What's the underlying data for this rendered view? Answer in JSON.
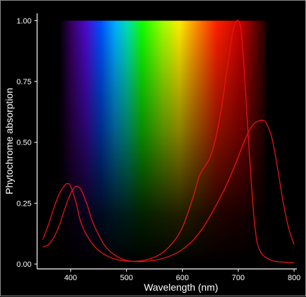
{
  "chart_data": {
    "type": "line",
    "xlabel": "Wavelength (nm)",
    "ylabel": "Phytochrome absorption",
    "xlim": [
      340,
      805
    ],
    "ylim": [
      -0.02,
      1.03
    ],
    "x_ticks": [
      400,
      500,
      600,
      700,
      800
    ],
    "y_ticks": [
      "0.00",
      "0.25",
      "0.50",
      "0.75",
      "1.00"
    ],
    "grid": false,
    "legend": "none",
    "colors": {
      "background": "#000000",
      "curve": "#e41414",
      "axis": "#ffffff"
    },
    "spectrum_band": {
      "x_start": 380,
      "x_end": 750,
      "description": "visible light spectrum fading toward the baseline"
    },
    "series": [
      {
        "x": [
          350,
          360,
          370,
          380,
          390,
          395,
          400,
          410,
          420,
          440,
          460,
          480,
          500,
          520,
          540,
          560,
          580,
          600,
          620,
          630,
          640,
          650,
          660,
          670,
          680,
          690,
          695,
          700,
          705,
          710,
          720,
          730,
          740,
          760,
          780,
          800
        ],
        "y": [
          0.1,
          0.16,
          0.23,
          0.29,
          0.325,
          0.33,
          0.32,
          0.25,
          0.16,
          0.08,
          0.04,
          0.02,
          0.012,
          0.012,
          0.02,
          0.04,
          0.08,
          0.15,
          0.28,
          0.36,
          0.4,
          0.44,
          0.52,
          0.64,
          0.8,
          0.95,
          0.99,
          1.0,
          0.96,
          0.82,
          0.45,
          0.15,
          0.05,
          0.015,
          0.008,
          0.005
        ]
      },
      {
        "x": [
          350,
          360,
          370,
          380,
          390,
          400,
          405,
          410,
          415,
          420,
          430,
          440,
          460,
          480,
          500,
          520,
          540,
          560,
          580,
          600,
          620,
          640,
          660,
          680,
          700,
          710,
          720,
          730,
          740,
          745,
          750,
          760,
          770,
          780,
          790,
          800
        ],
        "y": [
          0.07,
          0.08,
          0.11,
          0.16,
          0.23,
          0.29,
          0.31,
          0.32,
          0.315,
          0.3,
          0.24,
          0.17,
          0.08,
          0.035,
          0.015,
          0.01,
          0.012,
          0.02,
          0.035,
          0.06,
          0.1,
          0.16,
          0.24,
          0.33,
          0.44,
          0.5,
          0.55,
          0.58,
          0.59,
          0.59,
          0.58,
          0.52,
          0.4,
          0.26,
          0.15,
          0.08
        ]
      }
    ]
  }
}
